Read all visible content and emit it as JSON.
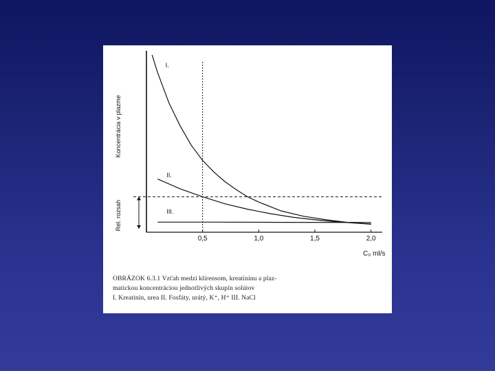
{
  "chart_data": {
    "type": "line",
    "x_ticks": [
      "0,5",
      "1,0",
      "1,5",
      "2,0"
    ],
    "x_tick_values": [
      0.5,
      1.0,
      1.5,
      2.0
    ],
    "xlim": [
      0,
      2.1
    ],
    "ylim": [
      0,
      1.0
    ],
    "xlabel": "C₀ ml/s",
    "ylabel_top": "Koncentrácia v plazme",
    "ylabel_bottom": "Rel. rozsah",
    "series": [
      {
        "name": "I.",
        "points": [
          [
            0.05,
            1.0
          ],
          [
            0.1,
            0.9
          ],
          [
            0.2,
            0.73
          ],
          [
            0.3,
            0.6
          ],
          [
            0.4,
            0.49
          ],
          [
            0.5,
            0.405
          ],
          [
            0.6,
            0.34
          ],
          [
            0.7,
            0.285
          ],
          [
            0.8,
            0.24
          ],
          [
            0.9,
            0.2
          ],
          [
            1.0,
            0.17
          ],
          [
            1.2,
            0.12
          ],
          [
            1.4,
            0.09
          ],
          [
            1.6,
            0.07
          ],
          [
            1.8,
            0.055
          ],
          [
            2.0,
            0.045
          ]
        ]
      },
      {
        "name": "II.",
        "points": [
          [
            0.1,
            0.3
          ],
          [
            0.3,
            0.245
          ],
          [
            0.5,
            0.2
          ],
          [
            0.7,
            0.16
          ],
          [
            0.9,
            0.13
          ],
          [
            1.1,
            0.105
          ],
          [
            1.3,
            0.085
          ],
          [
            1.5,
            0.07
          ],
          [
            1.7,
            0.058
          ],
          [
            1.9,
            0.05
          ],
          [
            2.0,
            0.047
          ]
        ]
      },
      {
        "name": "III.",
        "points": [
          [
            0.1,
            0.057
          ],
          [
            0.6,
            0.057
          ],
          [
            1.2,
            0.056
          ],
          [
            2.0,
            0.055
          ]
        ]
      }
    ],
    "reference_lines": {
      "vertical_x": 0.5,
      "horizontal_y": 0.2
    },
    "range_marker": [
      0.02,
      0.2
    ]
  },
  "caption": {
    "line1": "OBRÁZOK 6.3.1  Vzťah medzi klírensom, kreatinínu a plaz-",
    "line2": "matickou koncentráciou jednotlivých skupín solútov",
    "line3": "I. Kreatinín, urea    II. Fosfáty, urátý, K⁺, H⁺    III. NaCl"
  }
}
